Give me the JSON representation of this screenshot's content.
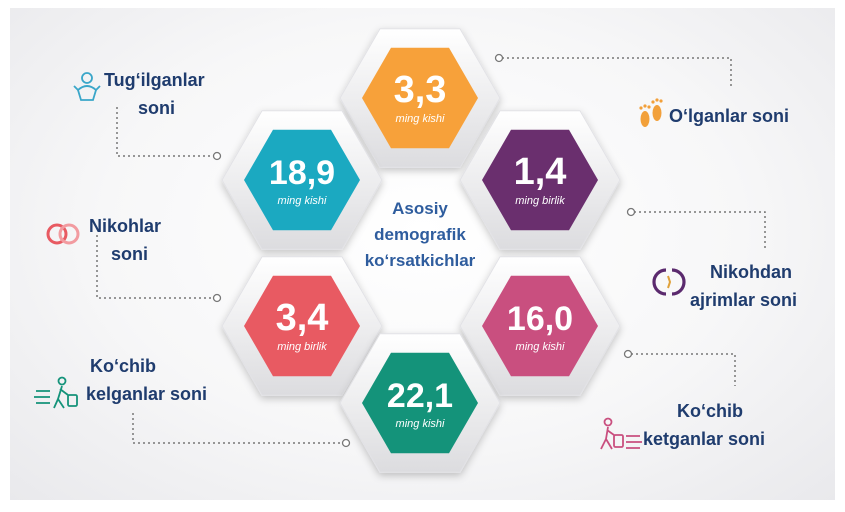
{
  "title": {
    "line1": "Asosiy",
    "line2": "demografik",
    "line3": "ko‘rsatkichlar"
  },
  "hexes": [
    {
      "id": "olganlar-value",
      "value": "3,3",
      "unit": "ming kishi",
      "color": "#f7a13a"
    },
    {
      "id": "tugilganlar-value",
      "value": "18,9",
      "unit": "ming kishi",
      "color": "#1ba9c1"
    },
    {
      "id": "ajrimlar-value",
      "value": "1,4",
      "unit": "ming birlik",
      "color": "#6a2f6e"
    },
    {
      "id": "nikohlar-value",
      "value": "3,4",
      "unit": "ming birlik",
      "color": "#e85a62"
    },
    {
      "id": "kochib-ketganlar-value",
      "value": "16,0",
      "unit": "ming kishi",
      "color": "#c94f7f"
    },
    {
      "id": "kochib-kelganlar-value",
      "value": "22,1",
      "unit": "ming kishi",
      "color": "#14937a"
    }
  ],
  "labels": {
    "tugilganlar": {
      "line1": "Tug‘ilganlar",
      "line2": "soni"
    },
    "olganlar": {
      "line1": "O‘lganlar  soni"
    },
    "nikohlar": {
      "line1": "Nikohlar",
      "line2": "soni"
    },
    "ajrimlar": {
      "line1": "Nikohdan",
      "line2": "ajrimlar soni"
    },
    "kochib_kelganlar": {
      "line1": "Ko‘chib",
      "line2": "kelganlar  soni"
    },
    "kochib_ketganlar": {
      "line1": "Ko‘chib",
      "line2": "ketganlar soni"
    }
  },
  "colors": {
    "label_text": "#1f3c6e",
    "center_text": "#2f5d9e",
    "connector": "#777777"
  }
}
